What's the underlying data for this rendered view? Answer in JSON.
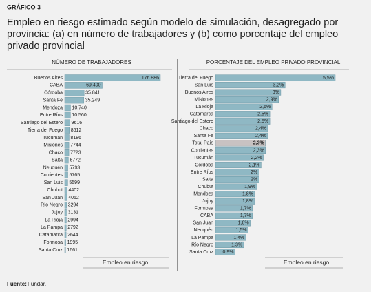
{
  "label": "GRÁFICO 3",
  "title": "Empleo en riesgo estimado según modelo de simulación, desagregado por provincia: (a) en número de trabajadores y (b) como porcentaje del empleo privado provincial",
  "source_label": "Fuente:",
  "source": "Fundar.",
  "chart_data": [
    {
      "type": "bar",
      "title": "NÚMERO DE TRABAJADORES",
      "xlabel": "Empleo en riesgo",
      "color": "#8fb8c4",
      "categories": [
        "Buenos Aires",
        "CABA",
        "Córdoba",
        "Santa Fe",
        "Mendoza",
        "Entre Ríos",
        "Santiago del Estero",
        "Tierra del Fuego",
        "Tucumán",
        "Misiones",
        "Chaco",
        "Salta",
        "Neuquén",
        "Corrientes",
        "San Luis",
        "Chubut",
        "San Juan",
        "Río Negro",
        "Jujuy",
        "La Rioja",
        "La Pampa",
        "Catamarca",
        "Formosa",
        "Santa Cruz"
      ],
      "values": [
        176886,
        69400,
        35841,
        35249,
        10740,
        10560,
        9616,
        8612,
        8186,
        7744,
        7723,
        6772,
        5793,
        5765,
        5599,
        4402,
        4052,
        3294,
        3131,
        2994,
        2792,
        2644,
        1995,
        1661
      ],
      "value_labels": [
        "176.886",
        "69.400",
        "35.841",
        "35.249",
        "10.740",
        "10.560",
        "9616",
        "8612",
        "8186",
        "7744",
        "7723",
        "6772",
        "5793",
        "5765",
        "5599",
        "4402",
        "4052",
        "3294",
        "3131",
        "2994",
        "2792",
        "2644",
        "1995",
        "1661"
      ]
    },
    {
      "type": "bar",
      "title": "PORCENTAJE DEL EMPLEO PRIVADO PROVINCIAL",
      "xlabel": "Empleo en riesgo",
      "color": "#8fb8c4",
      "categories": [
        "Tierra del Fuego",
        "San Luis",
        "Buenos Aires",
        "Misiones",
        "La Rioja",
        "Catamarca",
        "Santiago del Estero",
        "Chaco",
        "Santa Fe",
        "Total País",
        "Corrientes",
        "Tucumán",
        "Córdoba",
        "Entre Ríos",
        "Salta",
        "Chubut",
        "Mendoza",
        "Jujuy",
        "Formosa",
        "CABA",
        "San Juan",
        "Neuquén",
        "La Pampa",
        "Río Negro",
        "Santa Cruz"
      ],
      "values": [
        5.5,
        3.2,
        3,
        2.9,
        2.6,
        2.5,
        2.5,
        2.4,
        2.4,
        2.3,
        2.3,
        2.2,
        2.1,
        2,
        2,
        1.9,
        1.8,
        1.8,
        1.7,
        1.7,
        1.6,
        1.5,
        1.4,
        1.3,
        0.9
      ],
      "value_labels": [
        "5,5%",
        "3,2%",
        "3%",
        "2,9%",
        "2,6%",
        "2,5%",
        "2,5%",
        "2,4%",
        "2,4%",
        "2,3%",
        "2,3%",
        "2,2%",
        "2,1%",
        "2%",
        "2%",
        "1,9%",
        "1,8%",
        "1,8%",
        "1,7%",
        "1,7%",
        "1,6%",
        "1,5%",
        "1,4%",
        "1,3%",
        "0,9%"
      ],
      "highlight_color": "#c8c2c2",
      "highlight_index": 9
    }
  ]
}
